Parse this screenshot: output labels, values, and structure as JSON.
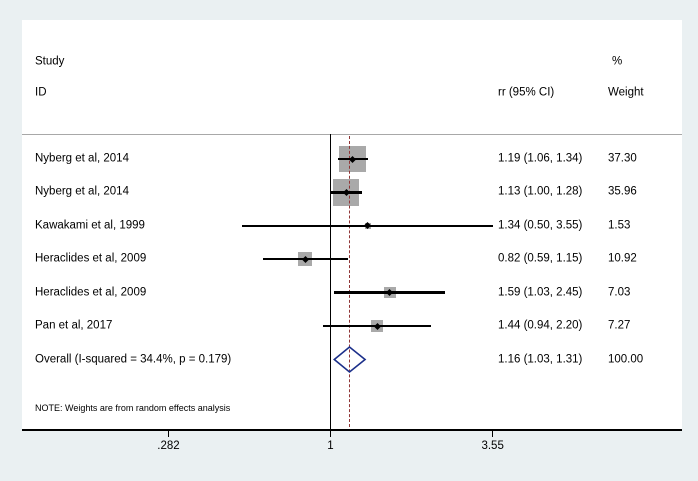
{
  "header": {
    "study": "Study",
    "id": "ID",
    "rr_ci": "rr (95% CI)",
    "percent": "%",
    "weight": "Weight"
  },
  "note": "NOTE: Weights are from random effects analysis",
  "colors": {
    "background": "#eaf0f2",
    "plot_background": "#ffffff",
    "box": "#a9a9a9",
    "diamond_outline": "#1b2f8a",
    "dashed_line": "#903536",
    "axis": "#000000",
    "divider": "#a8a8a8"
  },
  "chart_data": {
    "type": "forest",
    "x_scale": "log",
    "x_ticks": [
      {
        "value": 0.282,
        "label": ".282"
      },
      {
        "value": 1,
        "label": "1"
      },
      {
        "value": 3.55,
        "label": "3.55"
      }
    ],
    "null_line_value": 1,
    "dashed_line_value": 1.16,
    "studies": [
      {
        "label": "Nyberg et al, 2014",
        "rr": 1.19,
        "ci_low": 1.06,
        "ci_high": 1.34,
        "weight": 37.3,
        "rr_text": "1.19 (1.06, 1.34)",
        "weight_text": "37.30"
      },
      {
        "label": "Nyberg et al, 2014",
        "rr": 1.13,
        "ci_low": 1.0,
        "ci_high": 1.28,
        "weight": 35.96,
        "rr_text": "1.13 (1.00, 1.28)",
        "weight_text": "35.96"
      },
      {
        "label": "Kawakami et al, 1999",
        "rr": 1.34,
        "ci_low": 0.5,
        "ci_high": 3.55,
        "weight": 1.53,
        "rr_text": "1.34 (0.50, 3.55)",
        "weight_text": "1.53"
      },
      {
        "label": "Heraclides et al, 2009",
        "rr": 0.82,
        "ci_low": 0.59,
        "ci_high": 1.15,
        "weight": 10.92,
        "rr_text": "0.82 (0.59, 1.15)",
        "weight_text": "10.92"
      },
      {
        "label": "Heraclides et al, 2009",
        "rr": 1.59,
        "ci_low": 1.03,
        "ci_high": 2.45,
        "weight": 7.03,
        "rr_text": "1.59 (1.03, 2.45)",
        "weight_text": "7.03"
      },
      {
        "label": "Pan et al, 2017",
        "rr": 1.44,
        "ci_low": 0.94,
        "ci_high": 2.2,
        "weight": 7.27,
        "rr_text": "1.44 (0.94, 2.20)",
        "weight_text": "7.27"
      }
    ],
    "overall": {
      "label": "Overall  (I-squared = 34.4%, p = 0.179)",
      "rr": 1.16,
      "ci_low": 1.03,
      "ci_high": 1.31,
      "rr_text": "1.16 (1.03, 1.31)",
      "weight_text": "100.00"
    }
  }
}
